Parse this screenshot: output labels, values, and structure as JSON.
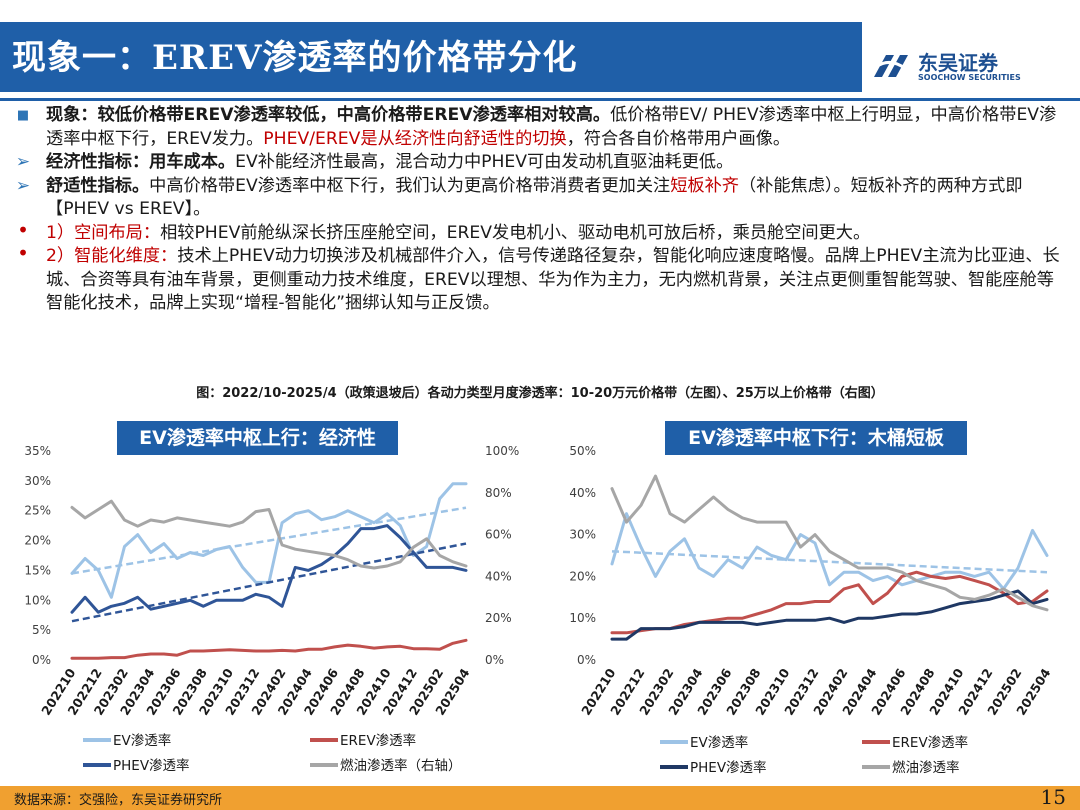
{
  "header": {
    "title": "现象一：EREV渗透率的价格带分化",
    "logo_name": "东吴证券",
    "logo_sub": "SOOCHOW SECURITIES"
  },
  "body": {
    "p1_lead": "现象：较低价格带EREV渗透率较低，中高价格带EREV渗透率相对较高。",
    "p1_text": "低价格带EV/ PHEV渗透率中枢上行明显，中高价格带EV渗透率中枢下行，EREV发力。",
    "p1_red": "PHEV/EREV是从经济性向舒适性的切换",
    "p1_tail": "，符合各自价格带用户画像。",
    "p2_lead": "经济性指标：用车成本。",
    "p2_text": "EV补能经济性最高，混合动力中PHEV可由发动机直驱油耗更低。",
    "p3_lead": "舒适性指标。",
    "p3_text": "中高价格带EV渗透率中枢下行，我们认为更高价格带消费者更加关注",
    "p3_red": "短板补齐",
    "p3_tail": "（补能焦虑）。短板补齐的两种方式即【PHEV vs EREV】。",
    "p4_red": "1）空间布局：",
    "p4_text": "相较PHEV前舱纵深长挤压座舱空间，EREV发电机小、驱动电机可放后桥，乘员舱空间更大。",
    "p5_red": "2）智能化维度：",
    "p5_text": "技术上PHEV动力切换涉及机械部件介入，信号传递路径复杂，智能化响应速度略慢。品牌上PHEV主流为比亚迪、长城、合资等具有油车背景，更侧重动力技术维度，EREV以理想、华为作为主力，无内燃机背景，关注点更侧重智能驾驶、智能座舱等智能化技术，品牌上实现“增程-智能化”捆绑认知与正反馈。"
  },
  "figure_caption": "图：2022/10-2025/4（政策退坡后）各动力类型月度渗透率：10-20万元价格带（左图）、25万以上价格带（右图）",
  "chart_data": [
    {
      "type": "line",
      "title": "EV渗透率中枢上行：经济性",
      "x": [
        "202210",
        "202211",
        "202212",
        "202301",
        "202302",
        "202303",
        "202304",
        "202305",
        "202306",
        "202307",
        "202308",
        "202309",
        "202310",
        "202311",
        "202312",
        "202401",
        "202402",
        "202403",
        "202404",
        "202405",
        "202406",
        "202407",
        "202408",
        "202409",
        "202410",
        "202411",
        "202412",
        "202501",
        "202502",
        "202503",
        "202504"
      ],
      "xticks": [
        "202210",
        "202212",
        "202302",
        "202304",
        "202306",
        "202308",
        "202310",
        "202312",
        "202402",
        "202404",
        "202406",
        "202408",
        "202410",
        "202412",
        "202502",
        "202504"
      ],
      "y_left": {
        "ticks": [
          "0%",
          "5%",
          "10%",
          "15%",
          "20%",
          "25%",
          "30%",
          "35%"
        ],
        "lim": [
          0,
          35
        ]
      },
      "y_right": {
        "ticks": [
          "0%",
          "20%",
          "40%",
          "60%",
          "80%",
          "100%"
        ],
        "lim": [
          0,
          100
        ]
      },
      "series": [
        {
          "name": "EV渗透率",
          "axis": "left",
          "color": "#9dc3e6",
          "values": [
            14.5,
            17,
            15,
            10.5,
            19,
            21,
            18,
            19.5,
            17,
            18,
            17.5,
            18.5,
            19,
            15.5,
            13,
            13,
            23,
            24.5,
            25,
            23.5,
            24,
            25,
            24,
            23,
            24.5,
            22.5,
            17.5,
            19,
            27,
            29.5,
            29.5
          ],
          "trend": [
            14.5,
            25.5
          ]
        },
        {
          "name": "EREV渗透率",
          "axis": "left",
          "color": "#c0504d",
          "values": [
            0.3,
            0.3,
            0.3,
            0.4,
            0.4,
            0.8,
            1,
            1,
            0.8,
            1.5,
            1.5,
            1.6,
            1.7,
            1.6,
            1.5,
            1.5,
            1.6,
            1.5,
            1.8,
            1.8,
            2.2,
            2.5,
            2.3,
            2,
            2.2,
            2.3,
            1.9,
            1.9,
            1.8,
            2.8,
            3.3
          ]
        },
        {
          "name": "PHEV渗透率",
          "axis": "left",
          "color": "#2f5597",
          "values": [
            8,
            10.5,
            8,
            9,
            9.5,
            10.5,
            8.5,
            9,
            9.5,
            10,
            9,
            10,
            10,
            10,
            11,
            10.5,
            9,
            15.5,
            15,
            16,
            17.5,
            19.5,
            22,
            22,
            22.5,
            20.5,
            18,
            15.5,
            15.5,
            15.5,
            15
          ],
          "trend": [
            6.5,
            19.5
          ]
        },
        {
          "name": "燃油渗透率（右轴）",
          "axis": "right",
          "color": "#a6a6a6",
          "values": [
            73,
            68,
            72,
            76,
            67,
            64,
            67,
            66,
            68,
            67,
            66,
            65,
            64,
            66,
            71,
            72,
            55,
            53,
            52,
            51,
            50,
            48,
            45,
            44,
            45,
            47,
            54,
            58,
            50,
            47,
            45
          ]
        }
      ]
    },
    {
      "type": "line",
      "title": "EV渗透率中枢下行：木桶短板",
      "x": [
        "202210",
        "202211",
        "202212",
        "202301",
        "202302",
        "202303",
        "202304",
        "202305",
        "202306",
        "202307",
        "202308",
        "202309",
        "202310",
        "202311",
        "202312",
        "202401",
        "202402",
        "202403",
        "202404",
        "202405",
        "202406",
        "202407",
        "202408",
        "202409",
        "202410",
        "202411",
        "202412",
        "202501",
        "202502",
        "202503",
        "202504"
      ],
      "xticks": [
        "202210",
        "202212",
        "202302",
        "202304",
        "202306",
        "202308",
        "202310",
        "202312",
        "202402",
        "202404",
        "202406",
        "202408",
        "202410",
        "202412",
        "202502",
        "202504"
      ],
      "y_left": {
        "ticks": [
          "0%",
          "10%",
          "20%",
          "30%",
          "40%",
          "50%"
        ],
        "lim": [
          0,
          50
        ]
      },
      "series": [
        {
          "name": "EV渗透率",
          "color": "#9dc3e6",
          "values": [
            23,
            35,
            27,
            20,
            26,
            29,
            22,
            20,
            24,
            22,
            27,
            25,
            24,
            30,
            28,
            18,
            21,
            21,
            19,
            20,
            18,
            19,
            20,
            21,
            21,
            20,
            21,
            17,
            22,
            31,
            25
          ],
          "trend": [
            26,
            21
          ]
        },
        {
          "name": "EREV渗透率",
          "color": "#c0504d",
          "values": [
            6.5,
            6.5,
            7,
            7.5,
            7.5,
            8.5,
            9,
            9.5,
            10,
            10,
            11,
            12,
            13.5,
            13.5,
            14,
            14,
            17,
            18,
            13.5,
            16,
            20,
            21,
            20,
            19.5,
            20,
            19,
            18,
            16,
            13.5,
            14,
            16.5
          ]
        },
        {
          "name": "PHEV渗透率",
          "color": "#1f3864",
          "values": [
            5,
            5,
            7.5,
            7.5,
            7.5,
            8,
            9,
            9,
            9,
            9,
            8.5,
            9,
            9.5,
            9.5,
            9.5,
            10,
            9,
            10,
            10,
            10.5,
            11,
            11,
            11.5,
            12.5,
            13.5,
            14,
            14.5,
            15.5,
            16.5,
            13.5,
            14.5
          ]
        },
        {
          "name": "燃油渗透率",
          "color": "#a6a6a6",
          "values": [
            41,
            33,
            37,
            44,
            35,
            33,
            36,
            39,
            36,
            34,
            33,
            33,
            33,
            27,
            30,
            26,
            24,
            22,
            22,
            22,
            21,
            19,
            18,
            17,
            15,
            14.5,
            15.5,
            17,
            15,
            13,
            12
          ]
        }
      ]
    }
  ],
  "footer": {
    "source": "数据来源：交强险，东吴证券研究所",
    "page": "15"
  }
}
